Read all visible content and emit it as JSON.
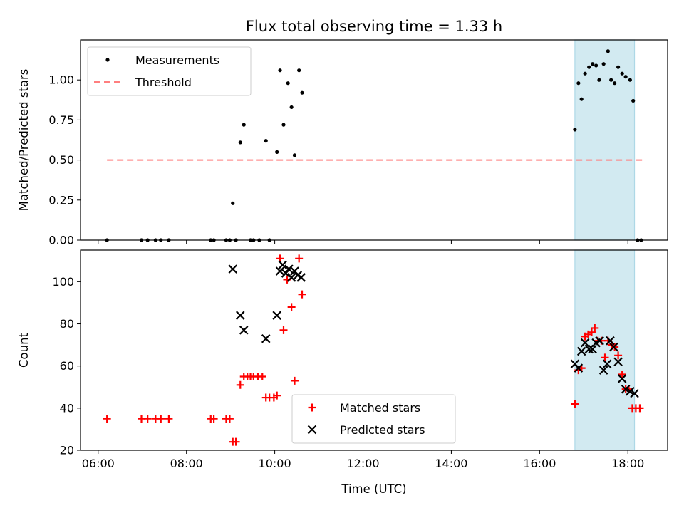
{
  "chart_data": {
    "title": "Flux total observing time = 1.33 h",
    "xlabel": "Time (UTC)",
    "x_ticks": [
      "06:00",
      "08:00",
      "10:00",
      "12:00",
      "14:00",
      "16:00",
      "18:00"
    ],
    "x_tick_hours": [
      6,
      8,
      10,
      12,
      14,
      16,
      18
    ],
    "xlim_hours": [
      5.6,
      18.9
    ],
    "highlight_span_hours": [
      16.8,
      18.15
    ],
    "colors": {
      "highlight": "#add8e6",
      "threshold": "#ff7f7f",
      "matched": "#ff0000",
      "predicted": "#000000",
      "measurements": "#000000"
    },
    "panels": [
      {
        "type": "scatter",
        "ylabel": "Matched/Predicted stars",
        "ylim": [
          0,
          1.25
        ],
        "y_ticks": [
          "0.00",
          "0.25",
          "0.50",
          "0.75",
          "1.00"
        ],
        "y_tick_values": [
          0,
          0.25,
          0.5,
          0.75,
          1.0
        ],
        "legend": {
          "placement": "upper-left",
          "entries": [
            "Measurements",
            "Threshold"
          ]
        },
        "threshold": {
          "name": "Threshold",
          "y": 0.5,
          "x_range_hours": [
            6.2,
            18.35
          ]
        },
        "series": [
          {
            "name": "Measurements",
            "x_hours": [
              6.2,
              6.98,
              7.12,
              7.3,
              7.42,
              7.6,
              8.55,
              8.62,
              8.9,
              8.98,
              9.05,
              9.12,
              9.22,
              9.3,
              9.45,
              9.52,
              9.65,
              9.8,
              9.88,
              10.05,
              10.12,
              10.2,
              10.3,
              10.38,
              10.45,
              10.55,
              10.62,
              16.8,
              16.88,
              16.95,
              17.03,
              17.12,
              17.2,
              17.28,
              17.35,
              17.45,
              17.55,
              17.62,
              17.7,
              17.78,
              17.87,
              17.95,
              18.05,
              18.12,
              18.22,
              18.3
            ],
            "y": [
              0,
              0,
              0,
              0,
              0,
              0,
              0,
              0,
              0,
              0,
              0.23,
              0,
              0.61,
              0.72,
              0,
              0,
              0,
              0.62,
              0,
              0.55,
              1.06,
              0.72,
              0.98,
              0.83,
              0.53,
              1.06,
              0.92,
              0.69,
              0.98,
              0.88,
              1.04,
              1.08,
              1.1,
              1.09,
              1.0,
              1.1,
              1.18,
              1.0,
              0.98,
              1.08,
              1.04,
              1.02,
              1.0,
              0.87,
              0,
              0
            ]
          }
        ]
      },
      {
        "type": "scatter",
        "ylabel": "Count",
        "ylim": [
          20,
          115
        ],
        "y_ticks": [
          "20",
          "40",
          "60",
          "80",
          "100"
        ],
        "y_tick_values": [
          20,
          40,
          60,
          80,
          100
        ],
        "legend": {
          "placement": "lower-center",
          "entries": [
            "Matched stars",
            "Predicted stars"
          ]
        },
        "series": [
          {
            "name": "Matched stars",
            "marker": "plus",
            "x_hours": [
              6.2,
              6.98,
              7.12,
              7.3,
              7.42,
              7.6,
              8.55,
              8.62,
              8.9,
              8.98,
              9.05,
              9.12,
              9.22,
              9.3,
              9.38,
              9.45,
              9.52,
              9.62,
              9.72,
              9.8,
              9.88,
              9.98,
              10.05,
              10.12,
              10.2,
              10.28,
              10.38,
              10.45,
              10.55,
              10.62,
              16.8,
              16.88,
              16.95,
              17.03,
              17.1,
              17.18,
              17.25,
              17.32,
              17.4,
              17.48,
              17.55,
              17.63,
              17.7,
              17.78,
              17.87,
              17.95,
              18.02,
              18.1,
              18.18,
              18.27
            ],
            "y": [
              35,
              35,
              35,
              35,
              35,
              35,
              35,
              35,
              35,
              35,
              24,
              24,
              51,
              55,
              55,
              55,
              55,
              55,
              55,
              45,
              45,
              45,
              46,
              111,
              77,
              101,
              88,
              53,
              111,
              94,
              42,
              58,
              59,
              74,
              75,
              76,
              78,
              72,
              72,
              64,
              72,
              70,
              69,
              65,
              56,
              49,
              49,
              40,
              40,
              40
            ]
          },
          {
            "name": "Predicted stars",
            "marker": "x",
            "x_hours": [
              9.05,
              9.22,
              9.3,
              9.8,
              10.05,
              10.12,
              10.18,
              10.25,
              10.32,
              10.38,
              10.45,
              10.52,
              10.6,
              16.8,
              16.88,
              16.95,
              17.03,
              17.12,
              17.2,
              17.28,
              17.36,
              17.45,
              17.53,
              17.6,
              17.68,
              17.78,
              17.87,
              17.95,
              18.05,
              18.15
            ],
            "y": [
              106,
              84,
              77,
              73,
              84,
              105,
              108,
              104,
              106,
              102,
              105,
              103,
              102,
              61,
              59,
              67,
              71,
              68,
              68,
              71,
              72,
              58,
              61,
              72,
              69,
              62,
              54,
              49,
              48,
              47
            ]
          }
        ]
      }
    ]
  }
}
